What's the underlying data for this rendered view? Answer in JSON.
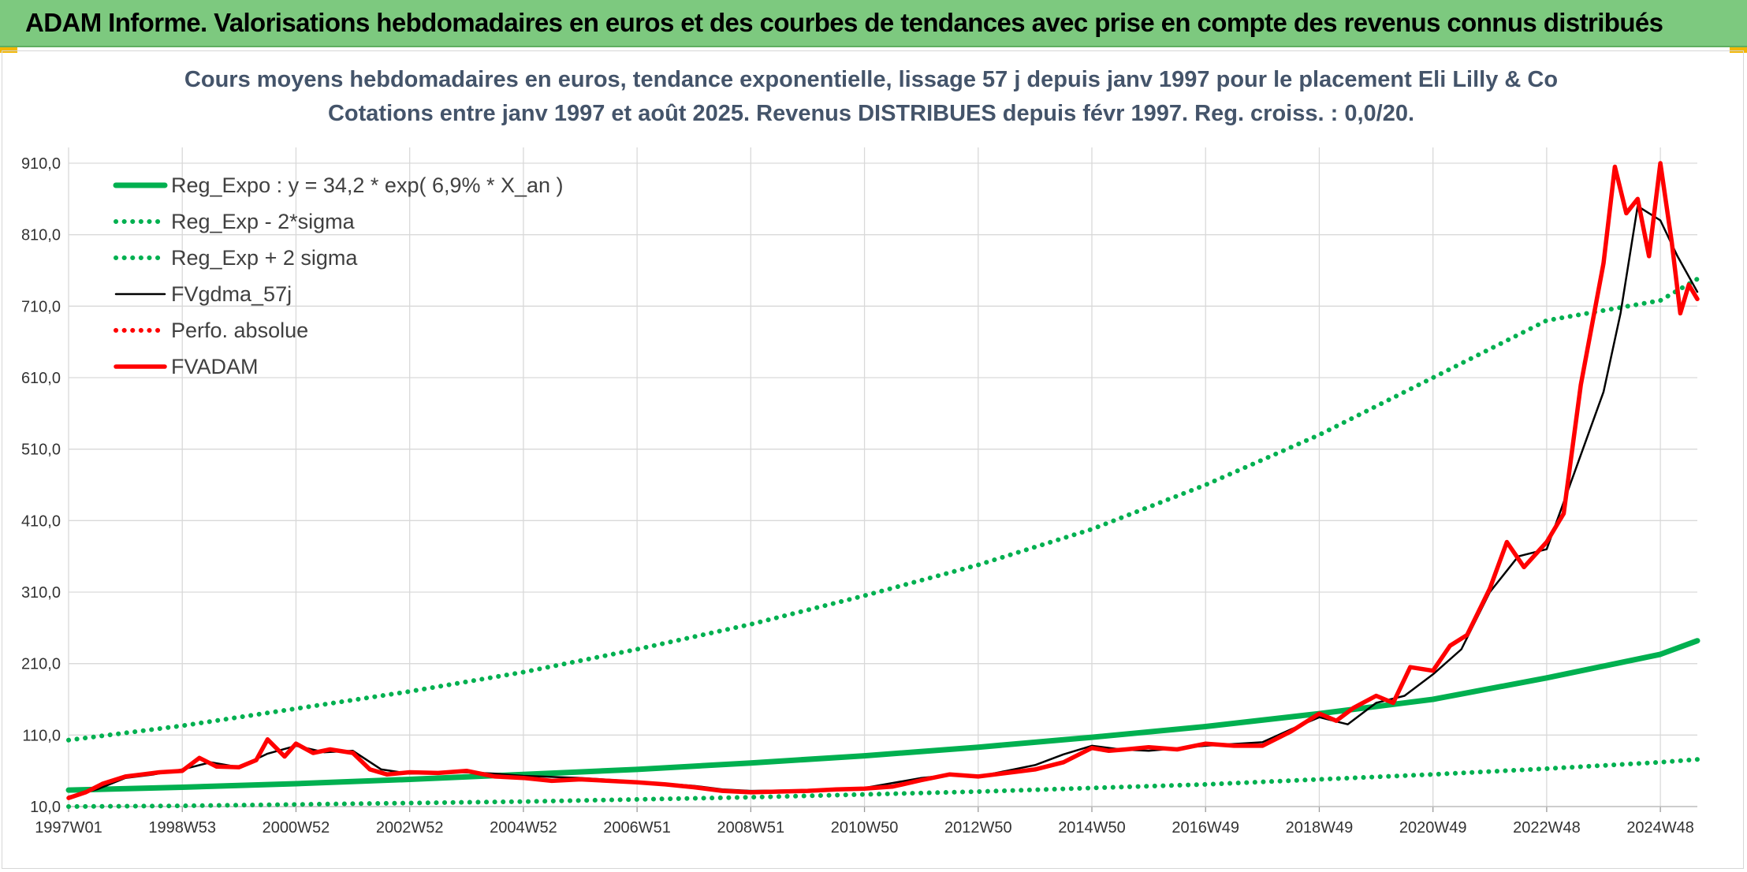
{
  "banner": {
    "title": "ADAM Informe. Valorisations hebdomadaires en euros et des courbes de tendances avec prise en compte des revenus connus distribués"
  },
  "colors": {
    "banner_bg": "#7dc97f",
    "reg_green": "#00b050",
    "fvadam_red": "#ff0000",
    "fvgdma_black": "#000000",
    "grid": "#d9d9d9"
  },
  "chart_data": {
    "type": "line",
    "title": "Cours moyens hebdomadaires en euros, tendance exponentielle, lissage 57 j depuis janv 1997 pour le placement Eli Lilly & Co",
    "subtitle": "Cotations entre janv 1997 et août 2025. Revenus DISTRIBUES depuis févr 1997. Reg. croiss. : 0,0/20.",
    "xlabel": "",
    "ylabel": "",
    "ylim": [
      10,
      910
    ],
    "xlim": [
      1997.0,
      2025.65
    ],
    "grid": true,
    "legend_position": "top-left",
    "y_ticks": [
      "10,0",
      "110,0",
      "210,0",
      "310,0",
      "410,0",
      "510,0",
      "610,0",
      "710,0",
      "810,0",
      "910,0"
    ],
    "x_ticks": [
      {
        "label": "1997W01",
        "x": 1997.0
      },
      {
        "label": "1998W53",
        "x": 1999.0
      },
      {
        "label": "2000W52",
        "x": 2001.0
      },
      {
        "label": "2002W52",
        "x": 2003.0
      },
      {
        "label": "2004W52",
        "x": 2005.0
      },
      {
        "label": "2006W51",
        "x": 2007.0
      },
      {
        "label": "2008W51",
        "x": 2009.0
      },
      {
        "label": "2010W50",
        "x": 2011.0
      },
      {
        "label": "2012W50",
        "x": 2013.0
      },
      {
        "label": "2014W50",
        "x": 2015.0
      },
      {
        "label": "2016W49",
        "x": 2017.0
      },
      {
        "label": "2018W49",
        "x": 2019.0
      },
      {
        "label": "2020W49",
        "x": 2021.0
      },
      {
        "label": "2022W48",
        "x": 2023.0
      },
      {
        "label": "2024W48",
        "x": 2025.0
      }
    ],
    "series": [
      {
        "name": "Reg_Expo : y = 34,2 * exp( 6,9% *  X_an )",
        "style": "solid-thick",
        "color": "#00b050",
        "x": [
          1997.0,
          1999.0,
          2001.0,
          2003.0,
          2005.0,
          2007.0,
          2009.0,
          2011.0,
          2013.0,
          2015.0,
          2017.0,
          2019.0,
          2021.0,
          2023.0,
          2025.0,
          2025.65
        ],
        "y": [
          33,
          37,
          42,
          48,
          55,
          62,
          71,
          81,
          93,
          107,
          122,
          140,
          160,
          190,
          223,
          242
        ]
      },
      {
        "name": "Reg_Exp - 2*sigma",
        "style": "dotted",
        "color": "#00b050",
        "x": [
          1997.0,
          1999.0,
          2001.0,
          2003.0,
          2005.0,
          2007.0,
          2009.0,
          2011.0,
          2013.0,
          2015.0,
          2017.0,
          2019.0,
          2021.0,
          2023.0,
          2025.0,
          2025.65
        ],
        "y": [
          10,
          11,
          13,
          15,
          17,
          20,
          23,
          27,
          31,
          36,
          41,
          48,
          55,
          63,
          72,
          76
        ]
      },
      {
        "name": "Reg_Exp + 2 sigma",
        "style": "dotted",
        "color": "#00b050",
        "x": [
          1997.0,
          1999.0,
          2001.0,
          2003.0,
          2005.0,
          2007.0,
          2009.0,
          2011.0,
          2013.0,
          2015.0,
          2017.0,
          2019.0,
          2021.0,
          2023.0,
          2025.0,
          2025.65
        ],
        "y": [
          103,
          123,
          147,
          171,
          198,
          230,
          265,
          305,
          348,
          398,
          460,
          530,
          610,
          690,
          718,
          748
        ]
      },
      {
        "name": "FVgdma_57j",
        "style": "solid",
        "color": "#000000",
        "x": [
          1997.0,
          1997.5,
          1998.0,
          1998.5,
          1999.0,
          1999.5,
          2000.0,
          2000.5,
          2001.0,
          2001.5,
          2002.0,
          2002.5,
          2003.0,
          2003.5,
          2004.0,
          2004.5,
          2005.0,
          2006.0,
          2007.0,
          2008.0,
          2008.5,
          2009.0,
          2010.0,
          2011.0,
          2012.0,
          2012.5,
          2013.0,
          2013.5,
          2014.0,
          2014.5,
          2015.0,
          2015.5,
          2016.0,
          2017.0,
          2018.0,
          2018.5,
          2019.0,
          2019.5,
          2020.0,
          2020.5,
          2021.0,
          2021.5,
          2022.0,
          2022.5,
          2023.0,
          2023.5,
          2024.0,
          2024.3,
          2024.6,
          2025.0,
          2025.3,
          2025.65
        ],
        "y": [
          24,
          34,
          50,
          55,
          62,
          72,
          65,
          84,
          95,
          86,
          88,
          62,
          56,
          57,
          58,
          56,
          53,
          50,
          45,
          39,
          34,
          32,
          33,
          36,
          50,
          54,
          52,
          60,
          68,
          83,
          95,
          90,
          88,
          95,
          100,
          118,
          135,
          125,
          155,
          165,
          195,
          230,
          310,
          360,
          370,
          480,
          590,
          700,
          850,
          830,
          780,
          730
        ]
      },
      {
        "name": "FVADAM",
        "style": "solid-thick",
        "color": "#ff0000",
        "x": [
          1997.0,
          1997.3,
          1997.6,
          1998.0,
          1998.3,
          1998.6,
          1999.0,
          1999.3,
          1999.6,
          2000.0,
          2000.3,
          2000.5,
          2000.8,
          2001.0,
          2001.3,
          2001.6,
          2002.0,
          2002.3,
          2002.6,
          2003.0,
          2003.5,
          2004.0,
          2004.5,
          2005.0,
          2005.5,
          2006.0,
          2006.5,
          2007.0,
          2007.5,
          2008.0,
          2008.5,
          2009.0,
          2009.5,
          2010.0,
          2010.5,
          2011.0,
          2011.5,
          2012.0,
          2012.5,
          2013.0,
          2013.5,
          2014.0,
          2014.5,
          2015.0,
          2015.3,
          2015.6,
          2016.0,
          2016.5,
          2017.0,
          2017.5,
          2018.0,
          2018.5,
          2019.0,
          2019.3,
          2019.6,
          2020.0,
          2020.3,
          2020.6,
          2021.0,
          2021.3,
          2021.6,
          2022.0,
          2022.3,
          2022.6,
          2023.0,
          2023.3,
          2023.6,
          2024.0,
          2024.2,
          2024.4,
          2024.6,
          2024.8,
          2025.0,
          2025.2,
          2025.35,
          2025.5,
          2025.65
        ],
        "y": [
          22,
          30,
          42,
          52,
          55,
          58,
          60,
          78,
          66,
          65,
          75,
          104,
          80,
          98,
          85,
          90,
          85,
          62,
          55,
          58,
          57,
          60,
          52,
          50,
          46,
          48,
          46,
          44,
          41,
          37,
          32,
          30,
          31,
          32,
          34,
          35,
          38,
          47,
          55,
          52,
          57,
          62,
          72,
          92,
          88,
          90,
          93,
          90,
          98,
          95,
          95,
          115,
          140,
          130,
          148,
          165,
          155,
          205,
          200,
          235,
          250,
          315,
          380,
          345,
          380,
          420,
          600,
          770,
          905,
          840,
          860,
          780,
          910,
          800,
          700,
          740,
          720
        ]
      },
      {
        "name": "Perfo. absolue",
        "style": "dotted",
        "color": "#ff0000",
        "x": [],
        "y": []
      }
    ]
  }
}
